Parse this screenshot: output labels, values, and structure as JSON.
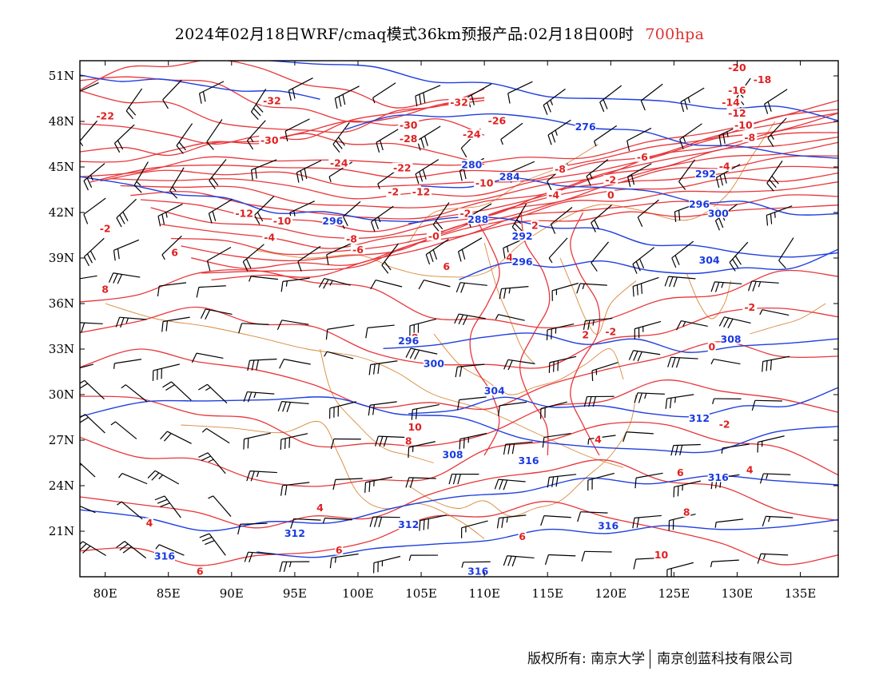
{
  "title": {
    "main": "2024年02月18日WRF/cmaq模式36km预报产品:02月18日00时",
    "level": "700hpa"
  },
  "colors": {
    "temperature": "#e8363a",
    "height": "#1f3fe0",
    "boundary": "#d9883a",
    "wind": "#000000",
    "level_text": "#e03030"
  },
  "map_extent": {
    "lon": [
      78,
      138
    ],
    "lat": [
      18,
      52
    ]
  },
  "lon_ticks": [
    "80E",
    "85E",
    "90E",
    "95E",
    "100E",
    "105E",
    "110E",
    "115E",
    "120E",
    "125E",
    "130E",
    "135E"
  ],
  "lon_values": [
    80,
    85,
    90,
    95,
    100,
    105,
    110,
    115,
    120,
    125,
    130,
    135
  ],
  "lat_ticks": [
    "51N",
    "48N",
    "45N",
    "42N",
    "39N",
    "36N",
    "33N",
    "30N",
    "27N",
    "24N",
    "21N"
  ],
  "lat_values": [
    51,
    48,
    45,
    42,
    39,
    36,
    33,
    30,
    27,
    24,
    21
  ],
  "height_labels": [
    {
      "text": "276",
      "lon": 118,
      "lat": 47.5
    },
    {
      "text": "280",
      "lon": 109,
      "lat": 45.0
    },
    {
      "text": "284",
      "lon": 112,
      "lat": 44.2
    },
    {
      "text": "288",
      "lon": 109.5,
      "lat": 41.4
    },
    {
      "text": "292",
      "lon": 113,
      "lat": 40.3
    },
    {
      "text": "292",
      "lon": 127.5,
      "lat": 44.4
    },
    {
      "text": "296",
      "lon": 113,
      "lat": 38.6
    },
    {
      "text": "296",
      "lon": 127,
      "lat": 42.4
    },
    {
      "text": "296",
      "lon": 104,
      "lat": 33.4
    },
    {
      "text": "300",
      "lon": 128.5,
      "lat": 41.8
    },
    {
      "text": "300",
      "lon": 106,
      "lat": 31.9
    },
    {
      "text": "304",
      "lon": 110.8,
      "lat": 30.1
    },
    {
      "text": "304",
      "lon": 127.8,
      "lat": 38.7
    },
    {
      "text": "308",
      "lon": 129.5,
      "lat": 33.5
    },
    {
      "text": "308",
      "lon": 107.5,
      "lat": 25.9
    },
    {
      "text": "312",
      "lon": 127,
      "lat": 28.3
    },
    {
      "text": "312",
      "lon": 95,
      "lat": 20.7
    },
    {
      "text": "312",
      "lon": 104,
      "lat": 21.3
    },
    {
      "text": "316",
      "lon": 113.5,
      "lat": 25.5
    },
    {
      "text": "316",
      "lon": 128.5,
      "lat": 24.4
    },
    {
      "text": "316",
      "lon": 119.8,
      "lat": 21.2
    },
    {
      "text": "316",
      "lon": 84.7,
      "lat": 19.2
    },
    {
      "text": "316",
      "lon": 109.5,
      "lat": 18.2
    },
    {
      "text": "296",
      "lon": 98,
      "lat": 41.3
    }
  ],
  "temperature_labels": [
    {
      "text": "-22",
      "lon": 80,
      "lat": 48.2
    },
    {
      "text": "-32",
      "lon": 93.2,
      "lat": 49.2
    },
    {
      "text": "-30",
      "lon": 93,
      "lat": 46.6
    },
    {
      "text": "-30",
      "lon": 104,
      "lat": 47.6
    },
    {
      "text": "-28",
      "lon": 104,
      "lat": 46.7
    },
    {
      "text": "-32",
      "lon": 108,
      "lat": 49.1
    },
    {
      "text": "-26",
      "lon": 111,
      "lat": 47.9
    },
    {
      "text": "-24",
      "lon": 109,
      "lat": 47.0
    },
    {
      "text": "-24",
      "lon": 98.5,
      "lat": 45.1
    },
    {
      "text": "-22",
      "lon": 103.5,
      "lat": 44.8
    },
    {
      "text": "-2",
      "lon": 102.8,
      "lat": 43.2
    },
    {
      "text": "-12",
      "lon": 105,
      "lat": 43.2
    },
    {
      "text": "-10",
      "lon": 110,
      "lat": 43.8
    },
    {
      "text": "-8",
      "lon": 116,
      "lat": 44.7
    },
    {
      "text": "-4",
      "lon": 115.5,
      "lat": 43.0
    },
    {
      "text": "-2",
      "lon": 120,
      "lat": 44.0
    },
    {
      "text": "0",
      "lon": 120,
      "lat": 43.0
    },
    {
      "text": "-6",
      "lon": 122.5,
      "lat": 45.5
    },
    {
      "text": "-2",
      "lon": 108.5,
      "lat": 41.8
    },
    {
      "text": "-12",
      "lon": 91,
      "lat": 41.8
    },
    {
      "text": "-10",
      "lon": 94,
      "lat": 41.3
    },
    {
      "text": "-2",
      "lon": 80,
      "lat": 40.8
    },
    {
      "text": "-4",
      "lon": 93,
      "lat": 40.2
    },
    {
      "text": "-8",
      "lon": 99.5,
      "lat": 40.1
    },
    {
      "text": "-6",
      "lon": 100,
      "lat": 39.4
    },
    {
      "text": "-0",
      "lon": 106,
      "lat": 40.3
    },
    {
      "text": "2",
      "lon": 114,
      "lat": 41.0
    },
    {
      "text": "4",
      "lon": 112,
      "lat": 38.9
    },
    {
      "text": "6",
      "lon": 107,
      "lat": 38.3
    },
    {
      "text": "6",
      "lon": 85.5,
      "lat": 39.2
    },
    {
      "text": "8",
      "lon": 80,
      "lat": 36.8
    },
    {
      "text": "8",
      "lon": 104.5,
      "lat": 33.6
    },
    {
      "text": "2",
      "lon": 118,
      "lat": 33.8
    },
    {
      "text": "-2",
      "lon": 120,
      "lat": 34.0
    },
    {
      "text": "-2",
      "lon": 131,
      "lat": 35.6
    },
    {
      "text": "0",
      "lon": 128,
      "lat": 33.0
    },
    {
      "text": "-2",
      "lon": 128.3,
      "lat": 41.9
    },
    {
      "text": "-4",
      "lon": 129,
      "lat": 44.9
    },
    {
      "text": "-8",
      "lon": 131,
      "lat": 46.8
    },
    {
      "text": "-10",
      "lon": 130.5,
      "lat": 47.6
    },
    {
      "text": "-12",
      "lon": 130,
      "lat": 48.4
    },
    {
      "text": "-14",
      "lon": 129.5,
      "lat": 49.1
    },
    {
      "text": "-16",
      "lon": 130,
      "lat": 49.9
    },
    {
      "text": "-18",
      "lon": 132,
      "lat": 50.6
    },
    {
      "text": "-20",
      "lon": 130,
      "lat": 51.4
    },
    {
      "text": "-2",
      "lon": 129,
      "lat": 27.9
    },
    {
      "text": "4",
      "lon": 119,
      "lat": 26.9
    },
    {
      "text": "4",
      "lon": 131,
      "lat": 24.9
    },
    {
      "text": "6",
      "lon": 125.5,
      "lat": 24.7
    },
    {
      "text": "8",
      "lon": 126,
      "lat": 22.1
    },
    {
      "text": "10",
      "lon": 124,
      "lat": 19.3
    },
    {
      "text": "6",
      "lon": 113,
      "lat": 20.5
    },
    {
      "text": "10",
      "lon": 104.5,
      "lat": 27.7
    },
    {
      "text": "8",
      "lon": 104,
      "lat": 26.8
    },
    {
      "text": "4",
      "lon": 97,
      "lat": 22.4
    },
    {
      "text": "6",
      "lon": 98.5,
      "lat": 19.6
    },
    {
      "text": "6",
      "lon": 87.5,
      "lat": 18.2
    },
    {
      "text": "4",
      "lon": 83.5,
      "lat": 21.4
    }
  ],
  "footer": {
    "left": "版权所有: 南京大学",
    "right": "南京创蓝科技有限公司"
  }
}
